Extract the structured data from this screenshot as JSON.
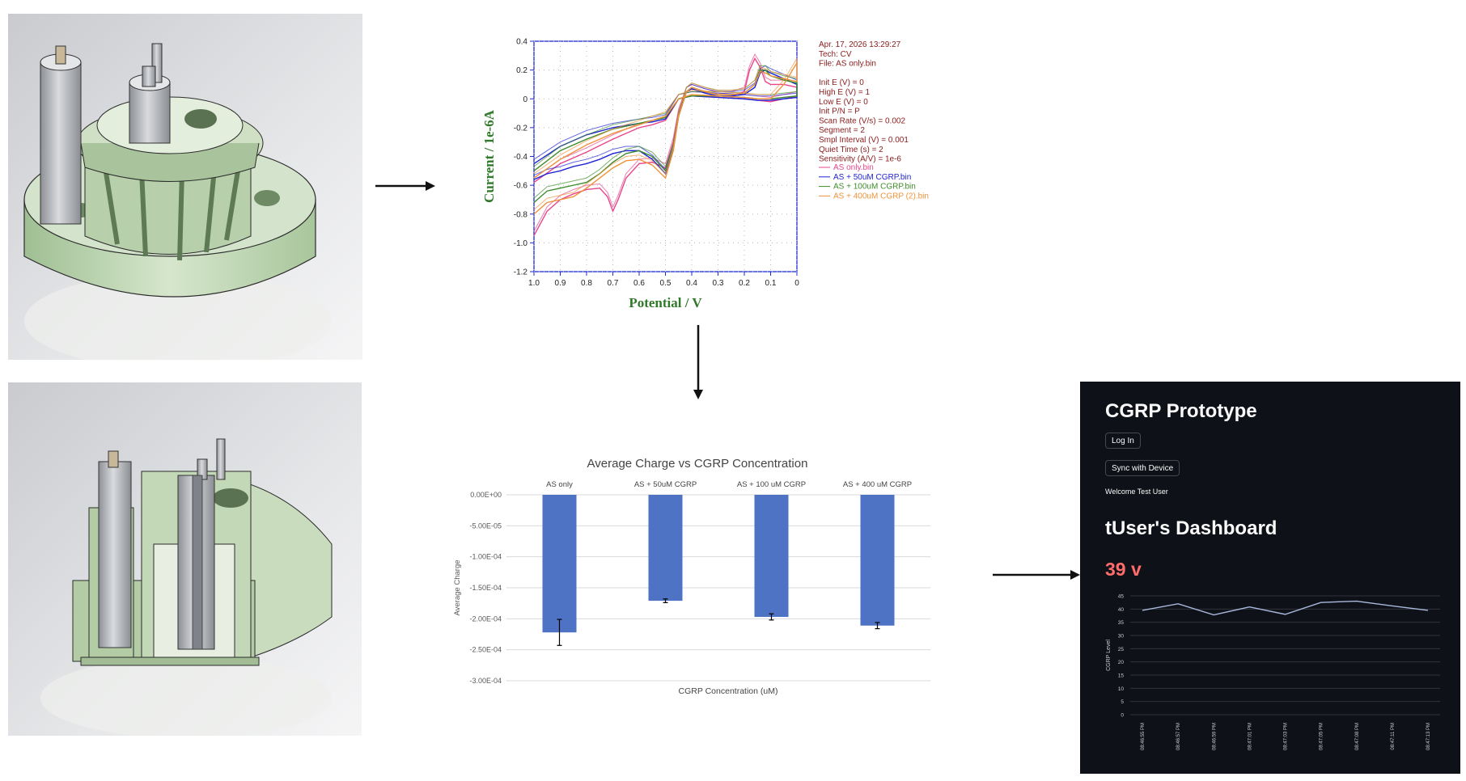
{
  "colors": {
    "cad_green": "#c7d9bd",
    "cad_bg": "#dcdde0",
    "bar_blue": "#4f73c4",
    "dash_bg": "#0e1117",
    "metric_red": "#ff6c6c",
    "series_pink": "#e8458b",
    "series_blue": "#1f23d6",
    "series_green": "#3d8c2a",
    "series_orange": "#f0923a"
  },
  "icons": [
    "arrow-right-icon",
    "arrow-down-icon"
  ],
  "cv_chart": {
    "chart_data": {
      "type": "line",
      "xlabel": "Potential / V",
      "ylabel": "Current / 1e-6A",
      "xlim": [
        1.0,
        0
      ],
      "ylim": [
        -1.2,
        0.4
      ],
      "xticks": [
        1.0,
        0.9,
        0.8,
        0.7,
        0.6,
        0.5,
        0.4,
        0.3,
        0.2,
        0.1,
        0
      ],
      "yticks": [
        0.4,
        0.2,
        0,
        -0.2,
        -0.4,
        -0.6,
        -0.8,
        -1.0,
        -1.2
      ],
      "xtick_labels": [
        "1.0",
        "0.9",
        "0.8",
        "0.7",
        "0.6",
        "0.5",
        "0.4",
        "0.3",
        "0.2",
        "0.1",
        "0"
      ],
      "ytick_labels": [
        "0.4",
        "0.2",
        "0",
        "-0.2",
        "-0.4",
        "-0.6",
        "-0.8",
        "-1.0",
        "-1.2"
      ],
      "grid": true,
      "legend_position": "right",
      "series": [
        {
          "name": "AS only.bin",
          "color": "#e8458b",
          "x": [
            1.0,
            0.95,
            0.9,
            0.85,
            0.8,
            0.75,
            0.72,
            0.7,
            0.68,
            0.65,
            0.6,
            0.55,
            0.5,
            0.47,
            0.45,
            0.42,
            0.4,
            0.35,
            0.3,
            0.25,
            0.2,
            0.18,
            0.16,
            0.14,
            0.12,
            0.1,
            0.05,
            0.0,
            0.0,
            0.05,
            0.1,
            0.15,
            0.2,
            0.3,
            0.4,
            0.45,
            0.5,
            0.55,
            0.6,
            0.7,
            0.8,
            0.9,
            1.0
          ],
          "y": [
            -0.95,
            -0.78,
            -0.7,
            -0.66,
            -0.63,
            -0.62,
            -0.68,
            -0.78,
            -0.7,
            -0.55,
            -0.45,
            -0.44,
            -0.48,
            -0.3,
            -0.1,
            0.05,
            0.07,
            0.04,
            0.02,
            0.02,
            0.05,
            0.2,
            0.28,
            0.22,
            0.12,
            0.1,
            0.1,
            0.08,
            0.02,
            0.0,
            -0.02,
            -0.01,
            0.0,
            0.01,
            0.02,
            0.0,
            -0.15,
            -0.18,
            -0.2,
            -0.28,
            -0.37,
            -0.45,
            -0.58
          ]
        },
        {
          "name": "AS + 50uM CGRP.bin",
          "color": "#1f23d6",
          "x": [
            1.0,
            0.95,
            0.9,
            0.85,
            0.8,
            0.75,
            0.7,
            0.65,
            0.6,
            0.55,
            0.5,
            0.47,
            0.45,
            0.42,
            0.4,
            0.35,
            0.3,
            0.25,
            0.2,
            0.16,
            0.14,
            0.12,
            0.1,
            0.05,
            0.0,
            0.0,
            0.05,
            0.1,
            0.15,
            0.2,
            0.3,
            0.4,
            0.45,
            0.5,
            0.55,
            0.6,
            0.7,
            0.8,
            0.9,
            1.0
          ],
          "y": [
            -0.56,
            -0.52,
            -0.5,
            -0.47,
            -0.45,
            -0.42,
            -0.38,
            -0.36,
            -0.36,
            -0.42,
            -0.52,
            -0.35,
            -0.12,
            0.05,
            0.07,
            0.04,
            0.02,
            0.02,
            0.03,
            0.08,
            0.18,
            0.2,
            0.18,
            0.14,
            0.1,
            0.01,
            0.0,
            -0.01,
            -0.01,
            0.0,
            0.01,
            0.02,
            0.0,
            -0.14,
            -0.16,
            -0.17,
            -0.2,
            -0.25,
            -0.33,
            -0.45
          ]
        },
        {
          "name": "AS + 100uM CGRP.bin",
          "color": "#3d8c2a",
          "x": [
            1.0,
            0.95,
            0.9,
            0.85,
            0.8,
            0.75,
            0.7,
            0.65,
            0.6,
            0.55,
            0.5,
            0.47,
            0.45,
            0.42,
            0.4,
            0.35,
            0.3,
            0.25,
            0.2,
            0.16,
            0.14,
            0.12,
            0.1,
            0.05,
            0.0,
            0.0,
            0.05,
            0.1,
            0.15,
            0.2,
            0.3,
            0.4,
            0.45,
            0.5,
            0.55,
            0.6,
            0.7,
            0.8,
            0.9,
            1.0
          ],
          "y": [
            -0.72,
            -0.64,
            -0.62,
            -0.6,
            -0.58,
            -0.52,
            -0.44,
            -0.38,
            -0.36,
            -0.4,
            -0.5,
            -0.34,
            -0.12,
            0.05,
            0.08,
            0.05,
            0.03,
            0.03,
            0.04,
            0.1,
            0.2,
            0.2,
            0.16,
            0.13,
            0.11,
            0.02,
            0.01,
            0.0,
            0.0,
            0.01,
            0.02,
            0.02,
            0.0,
            -0.13,
            -0.15,
            -0.17,
            -0.21,
            -0.28,
            -0.36,
            -0.5
          ]
        },
        {
          "name": "AS + 400uM CGRP (2).bin",
          "color": "#f0923a",
          "x": [
            1.0,
            0.95,
            0.9,
            0.85,
            0.8,
            0.75,
            0.7,
            0.65,
            0.6,
            0.55,
            0.5,
            0.47,
            0.45,
            0.42,
            0.4,
            0.35,
            0.3,
            0.25,
            0.2,
            0.16,
            0.14,
            0.12,
            0.1,
            0.05,
            0.0,
            0.0,
            0.05,
            0.1,
            0.15,
            0.2,
            0.3,
            0.4,
            0.45,
            0.5,
            0.55,
            0.6,
            0.7,
            0.8,
            0.9,
            1.0
          ],
          "y": [
            -0.8,
            -0.72,
            -0.7,
            -0.68,
            -0.62,
            -0.55,
            -0.48,
            -0.43,
            -0.42,
            -0.46,
            -0.55,
            -0.36,
            -0.12,
            0.05,
            0.08,
            0.05,
            0.03,
            0.03,
            0.04,
            0.1,
            0.19,
            0.18,
            0.16,
            0.14,
            0.12,
            0.25,
            0.1,
            0.0,
            0.0,
            0.01,
            0.02,
            0.03,
            0.0,
            -0.12,
            -0.15,
            -0.18,
            -0.24,
            -0.32,
            -0.42,
            -0.55
          ]
        }
      ]
    },
    "info": [
      "Apr. 17, 2026   13:29:27",
      "Tech: CV",
      "File: AS only.bin",
      "",
      "Init E (V) = 0",
      "High E (V) = 1",
      "Low E (V) = 0",
      "Init P/N = P",
      "Scan Rate (V/s) = 0.002",
      "Segment = 2",
      "Smpl Interval (V) = 0.001",
      "Quiet Time (s) = 2",
      "Sensitivity (A/V) = 1e-6"
    ]
  },
  "bar_chart": {
    "chart_data": {
      "type": "bar",
      "title": "Average Charge vs CGRP Concentration",
      "xlabel": "CGRP Concentration (uM)",
      "ylabel": "Average Charge",
      "categories": [
        "AS only",
        "AS + 50uM CGRP",
        "AS + 100 uM CGRP",
        "AS + 400 uM CGRP"
      ],
      "values": [
        -0.000222,
        -0.000171,
        -0.000197,
        -0.000211
      ],
      "error": [
        2.1e-05,
        3e-06,
        5e-06,
        5e-06
      ],
      "ylim": [
        -0.0003,
        0
      ],
      "yticks": [
        0,
        -5e-05,
        -0.0001,
        -0.00015,
        -0.0002,
        -0.00025,
        -0.0003
      ],
      "ytick_labels": [
        "0.00E+00",
        "-5.00E-05",
        "-1.00E-04",
        "-1.50E-04",
        "-2.00E-04",
        "-2.50E-04",
        "-3.00E-04"
      ],
      "grid": true
    }
  },
  "dashboard": {
    "title": "CGRP Prototype",
    "login_label": "Log In",
    "sync_label": "Sync with Device",
    "welcome": "Welcome Test User",
    "heading": "tUser's Dashboard",
    "metric": "39 v",
    "chart_data": {
      "type": "line",
      "ylabel": "CGRP Level",
      "ylim": [
        0,
        45
      ],
      "yticks": [
        0,
        5,
        10,
        15,
        20,
        25,
        30,
        35,
        40,
        45
      ],
      "x": [
        "08:46:55 PM",
        "08:46:57 PM",
        "08:46:59 PM",
        "08:47:01 PM",
        "08:47:03 PM",
        "08:47:05 PM",
        "08:47:08 PM",
        "08:47:11 PM",
        "08:47:13 PM"
      ],
      "values": [
        39.5,
        42,
        37.8,
        40.8,
        38,
        42.5,
        43,
        41.2,
        39.5
      ],
      "grid": true,
      "color": "#a9b8dd"
    }
  }
}
